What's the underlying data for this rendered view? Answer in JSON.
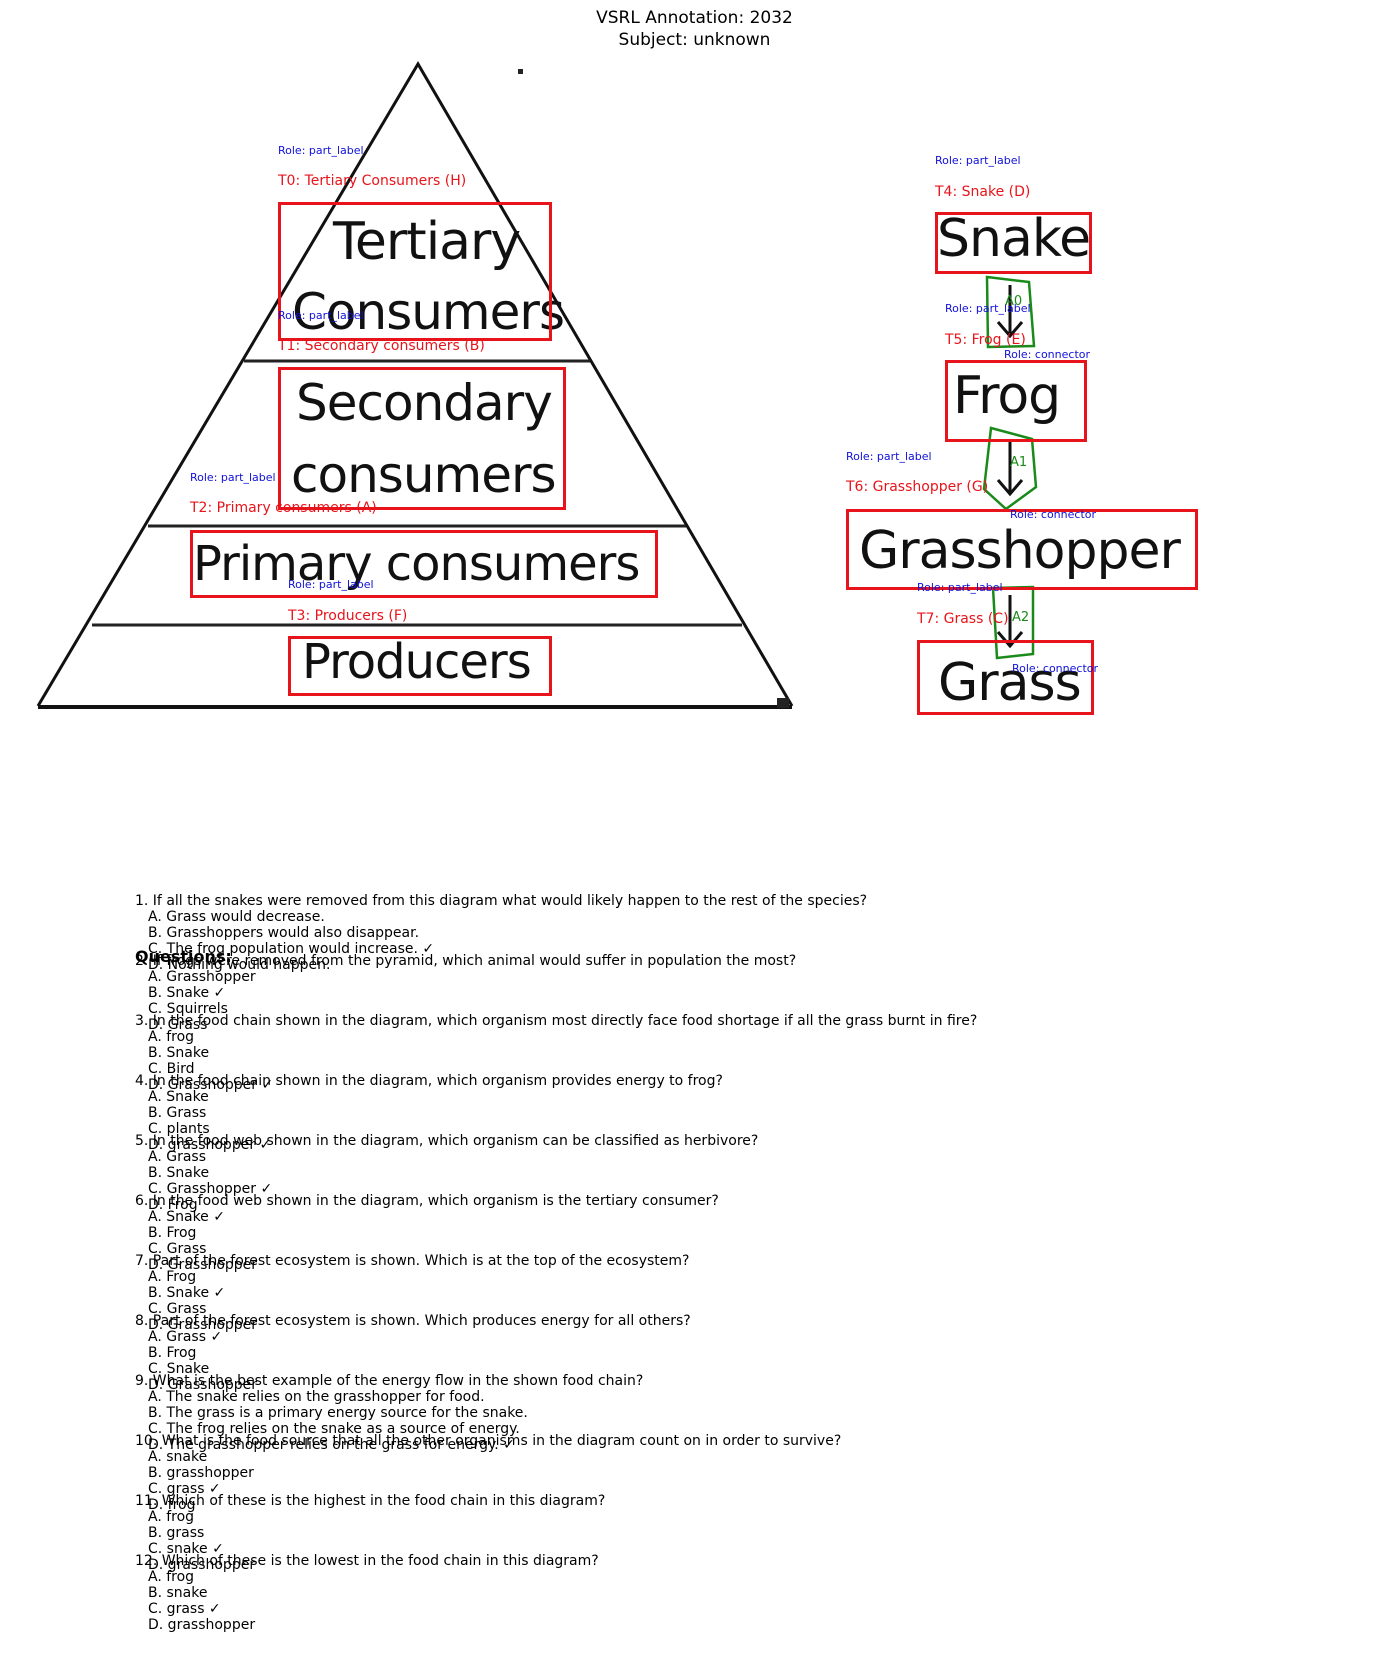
{
  "header": {
    "title_line1": "VSRL Annotation: 2032",
    "title_line2": "Subject: unknown"
  },
  "pyramid": {
    "levels": [
      "Tertiary",
      "Consumers",
      "Secondary",
      "consumers",
      "Primary consumers",
      "Producers"
    ]
  },
  "chain": {
    "words": [
      "Snake",
      "Frog",
      "Grasshopper",
      "Grass"
    ]
  },
  "annotations": {
    "terms": [
      {
        "role": "Role: part_label",
        "tag": "T0: Tertiary Consumers  (H)"
      },
      {
        "role": "Role: part_label",
        "tag": "T1: Secondary consumers  (B)"
      },
      {
        "role": "Role: part_label",
        "tag": "T2: Primary consumers  (A)"
      },
      {
        "role": "Role: part_label",
        "tag": "T3: Producers  (F)"
      },
      {
        "role": "Role: part_label",
        "tag": "T4: Snake  (D)"
      },
      {
        "role": "Role: part_label",
        "tag": "T5: Frog  (E)"
      },
      {
        "role": "Role: part_label",
        "tag": "T6: Grasshopper  (G)"
      },
      {
        "role": "Role: part_label",
        "tag": "T7: Grass  (C)"
      }
    ],
    "arrows": [
      {
        "role": "Role: connector",
        "label": "A0"
      },
      {
        "role": "Role: connector",
        "label": "A1"
      },
      {
        "role": "Role: connector",
        "label": "A2"
      }
    ],
    "colors": {
      "term_box": "#e8141b",
      "role_text": "#1010d8",
      "arrow": "#1a8a1a"
    }
  },
  "questions": {
    "heading": "Questions:",
    "items": [
      {
        "q": "1. If all the snakes were removed from this diagram what would likely happen to the rest of the species?",
        "a": [
          "A. Grass would decrease.",
          "B. Grasshoppers would also disappear.",
          "C. The frog population would increase. ✓",
          "D. Nothing would happen."
        ]
      },
      {
        "q": "2. If frogs were removed from the pyramid, which animal would suffer in population the most?",
        "a": [
          "A. Grasshopper",
          "B. Snake ✓",
          "C. Squirrels",
          "D. Grass"
        ]
      },
      {
        "q": "3. In the food chain shown in the diagram, which organism most directly face food shortage if all the grass burnt in fire?",
        "a": [
          "A. frog",
          "B. Snake",
          "C. Bird",
          "D. Grasshopper ✓"
        ]
      },
      {
        "q": "4. In the food chain shown in the diagram, which organism provides energy to frog?",
        "a": [
          "A. Snake",
          "B. Grass",
          "C. plants",
          "D. grasshopper ✓"
        ]
      },
      {
        "q": "5. In the food web shown in the diagram, which organism can be classified as herbivore?",
        "a": [
          "A. Grass",
          "B. Snake",
          "C. Grasshopper ✓",
          "D. Frog"
        ]
      },
      {
        "q": "6. In the food web shown in the diagram, which organism is the tertiary consumer?",
        "a": [
          "A. Snake ✓",
          "B. Frog",
          "C. Grass",
          "D. Grasshopper"
        ]
      },
      {
        "q": "7. Part of the forest ecosystem is shown. Which is at the top of the ecosystem?",
        "a": [
          "A. Frog",
          "B. Snake ✓",
          "C. Grass",
          "D. Grasshopper"
        ]
      },
      {
        "q": "8. Part of the forest ecosystem is shown. Which produces energy for all others?",
        "a": [
          "A. Grass ✓",
          "B. Frog",
          "C. Snake",
          "D. Grasshopper"
        ]
      },
      {
        "q": "9. What is the best example of the energy flow in the shown food chain?",
        "a": [
          "A. The snake relies on the grasshopper for food.",
          "B. The grass is a primary energy source for the snake.",
          "C. The frog relies on the snake as a source of energy.",
          "D. The grasshopper relies on the grass for energy. ✓"
        ]
      },
      {
        "q": "10. What is the food source that all the other organisms in the diagram count on in order to survive?",
        "a": [
          "A. snake",
          "B. grasshopper",
          "C. grass ✓",
          "D. frog"
        ]
      },
      {
        "q": "11. Which of these is the highest in the food chain in this diagram?",
        "a": [
          "A. frog",
          "B. grass",
          "C. snake ✓",
          "D. grasshopper"
        ]
      },
      {
        "q": "12. Which of these is the lowest in the food chain in this diagram?",
        "a": [
          "A. frog",
          "B. snake",
          "C. grass ✓",
          "D. grasshopper"
        ]
      }
    ]
  }
}
